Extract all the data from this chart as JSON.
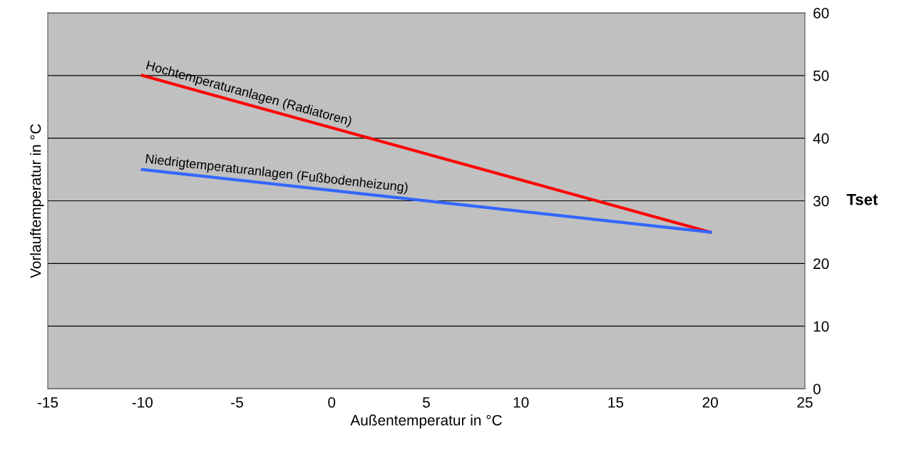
{
  "chart_data": {
    "type": "line",
    "xlabel": "Außentemperatur in °C",
    "ylabel": "Vorlauftemperatur in °C",
    "y2label": "Tset",
    "x": [
      -10,
      20
    ],
    "series": [
      {
        "name": "Hochtemperaturanlagen (Radiatoren)",
        "color": "#ff0000",
        "values": [
          50,
          25
        ]
      },
      {
        "name": "Niedrigtemperaturanlagen (Fußbodenheizung)",
        "color": "#3366ff",
        "values": [
          35,
          25
        ]
      }
    ],
    "xlim": [
      -15,
      25
    ],
    "xticks": [
      -15,
      -10,
      -5,
      0,
      5,
      10,
      15,
      20,
      25
    ],
    "ylim": [
      0,
      60
    ],
    "yticks": [
      0,
      10,
      20,
      30,
      40,
      50,
      60
    ],
    "grid": "y",
    "legend": false,
    "marker": "none",
    "line_style": "solid"
  }
}
